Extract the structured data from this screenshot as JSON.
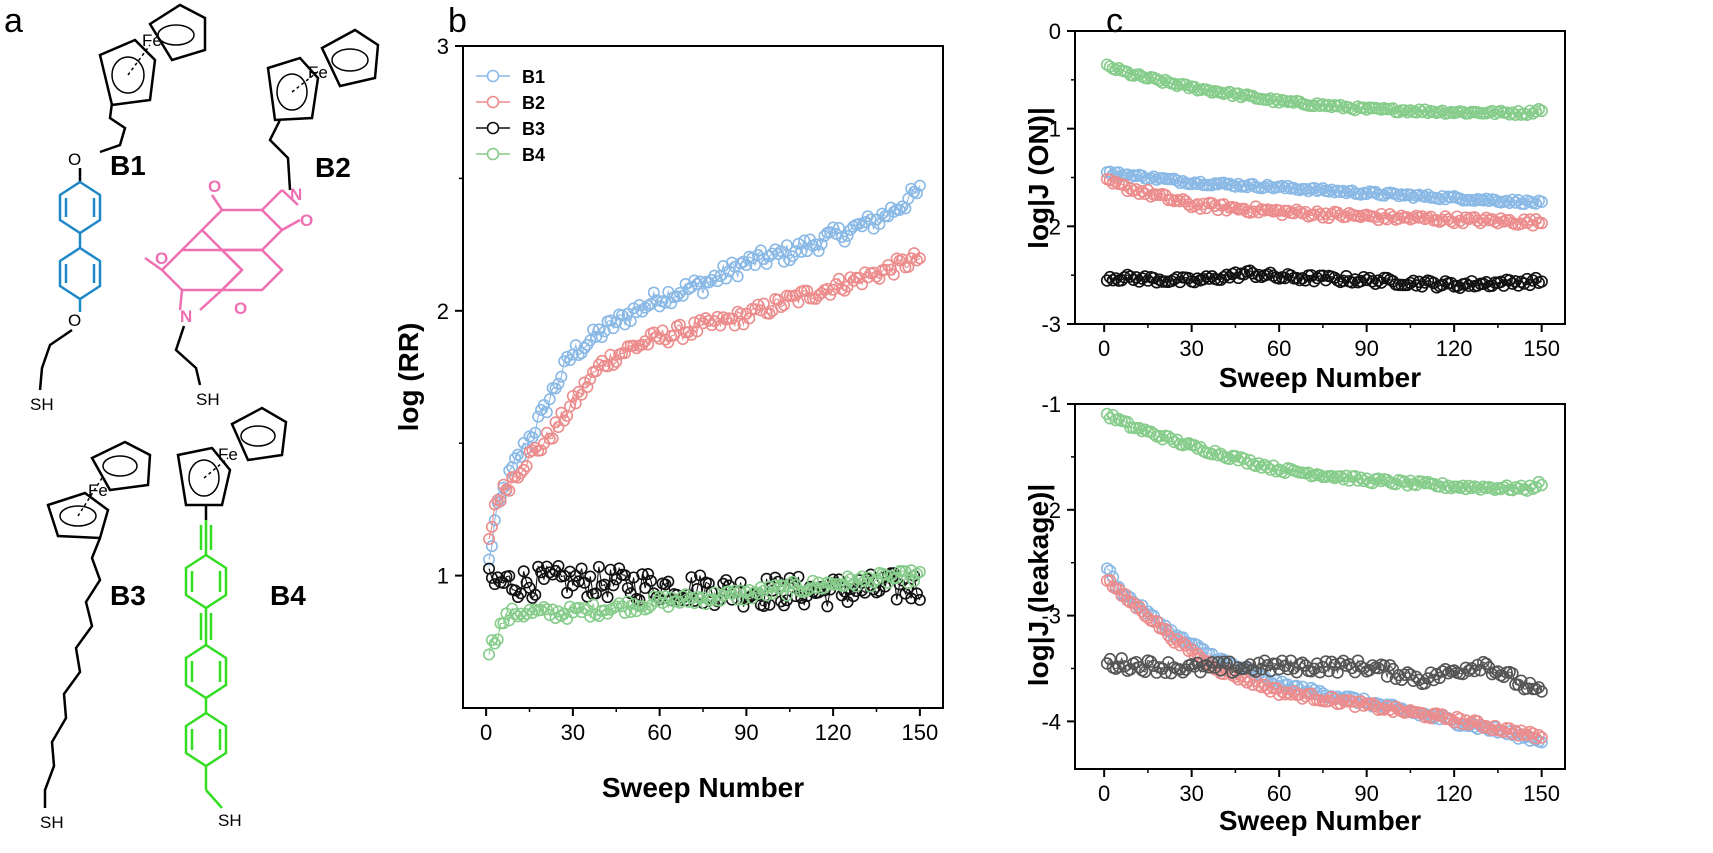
{
  "figure": {
    "panel_labels": {
      "a": "a",
      "b": "b",
      "c": "c"
    },
    "molecules": {
      "b1": {
        "label": "B1",
        "color": "#1e88c7",
        "atoms": {
          "fe": "Fe",
          "o_top": "O",
          "o_bottom": "O",
          "sh": "SH"
        }
      },
      "b2": {
        "label": "B2",
        "color": "#ef6fb3",
        "atoms": {
          "fe": "Fe",
          "n_top": "N",
          "n_bottom": "N",
          "o1": "O",
          "o2": "O",
          "o3": "O",
          "o4": "O",
          "sh": "SH"
        }
      },
      "b3": {
        "label": "B3",
        "color": "#000000",
        "atoms": {
          "fe": "Fe",
          "sh": "SH"
        }
      },
      "b4": {
        "label": "B4",
        "color": "#33dd22",
        "atoms": {
          "fe": "Fe",
          "sh": "SH"
        }
      }
    }
  },
  "colors": {
    "B1": "#8ab9e6",
    "B2": "#ec8c8c",
    "B3": "#111111",
    "B4": "#86cc8a",
    "B3_leak": "#555555"
  },
  "chart_data": [
    {
      "id": "b",
      "type": "scatter",
      "title": "",
      "xlabel": "Sweep Number",
      "ylabel": "log (RR)",
      "xlim": [
        -8,
        158
      ],
      "ylim": [
        0.5,
        3.0
      ],
      "xticks": [
        0,
        30,
        60,
        90,
        120,
        150
      ],
      "yticks": [
        1,
        2,
        3
      ],
      "legend": {
        "placement": "top-left",
        "entries": [
          "B1",
          "B2",
          "B3",
          "B4"
        ]
      },
      "grid": false,
      "series": [
        {
          "name": "B1",
          "anchors": [
            [
              1,
              1.05
            ],
            [
              3,
              1.2
            ],
            [
              6,
              1.32
            ],
            [
              10,
              1.42
            ],
            [
              15,
              1.52
            ],
            [
              20,
              1.62
            ],
            [
              25,
              1.74
            ],
            [
              30,
              1.84
            ],
            [
              40,
              1.92
            ],
            [
              50,
              1.99
            ],
            [
              60,
              2.05
            ],
            [
              75,
              2.1
            ],
            [
              90,
              2.18
            ],
            [
              105,
              2.22
            ],
            [
              120,
              2.28
            ],
            [
              135,
              2.34
            ],
            [
              150,
              2.45
            ]
          ]
        },
        {
          "name": "B2",
          "anchors": [
            [
              1,
              1.12
            ],
            [
              3,
              1.27
            ],
            [
              6,
              1.32
            ],
            [
              10,
              1.38
            ],
            [
              15,
              1.45
            ],
            [
              20,
              1.5
            ],
            [
              25,
              1.57
            ],
            [
              30,
              1.65
            ],
            [
              40,
              1.8
            ],
            [
              50,
              1.86
            ],
            [
              60,
              1.9
            ],
            [
              75,
              1.94
            ],
            [
              90,
              1.98
            ],
            [
              105,
              2.04
            ],
            [
              120,
              2.09
            ],
            [
              135,
              2.14
            ],
            [
              150,
              2.2
            ]
          ]
        },
        {
          "name": "B3",
          "anchors": [
            [
              1,
              0.97
            ],
            [
              30,
              0.98
            ],
            [
              60,
              0.96
            ],
            [
              90,
              0.94
            ],
            [
              120,
              0.94
            ],
            [
              150,
              0.96
            ]
          ]
        },
        {
          "name": "B4",
          "anchors": [
            [
              1,
              0.72
            ],
            [
              3,
              0.76
            ],
            [
              6,
              0.83
            ],
            [
              10,
              0.86
            ],
            [
              30,
              0.86
            ],
            [
              60,
              0.9
            ],
            [
              90,
              0.93
            ],
            [
              120,
              0.97
            ],
            [
              150,
              1.0
            ]
          ]
        }
      ]
    },
    {
      "id": "c-top",
      "type": "scatter",
      "title": "",
      "xlabel": "Sweep Number",
      "ylabel": "log|J (ON)|",
      "xlim": [
        -10,
        158
      ],
      "ylim": [
        -3,
        0
      ],
      "xticks": [
        0,
        30,
        60,
        90,
        120,
        150
      ],
      "yticks": [
        0,
        -1,
        -2,
        -3
      ],
      "grid": false,
      "series": [
        {
          "name": "B4",
          "anchors": [
            [
              1,
              -0.36
            ],
            [
              10,
              -0.45
            ],
            [
              30,
              -0.58
            ],
            [
              60,
              -0.72
            ],
            [
              90,
              -0.8
            ],
            [
              120,
              -0.83
            ],
            [
              145,
              -0.84
            ],
            [
              150,
              -0.8
            ]
          ]
        },
        {
          "name": "B1",
          "anchors": [
            [
              1,
              -1.45
            ],
            [
              30,
              -1.55
            ],
            [
              60,
              -1.6
            ],
            [
              90,
              -1.66
            ],
            [
              120,
              -1.71
            ],
            [
              150,
              -1.76
            ]
          ]
        },
        {
          "name": "B2",
          "anchors": [
            [
              1,
              -1.55
            ],
            [
              30,
              -1.78
            ],
            [
              60,
              -1.85
            ],
            [
              90,
              -1.9
            ],
            [
              120,
              -1.93
            ],
            [
              150,
              -1.96
            ]
          ]
        },
        {
          "name": "B3",
          "anchors": [
            [
              1,
              -2.52
            ],
            [
              30,
              -2.56
            ],
            [
              50,
              -2.48
            ],
            [
              60,
              -2.52
            ],
            [
              90,
              -2.55
            ],
            [
              120,
              -2.6
            ],
            [
              150,
              -2.56
            ]
          ]
        }
      ]
    },
    {
      "id": "c-bottom",
      "type": "scatter",
      "title": "",
      "xlabel": "Sweep Number",
      "ylabel": "log|J (leakage)|",
      "xlim": [
        -10,
        158
      ],
      "ylim": [
        -4.45,
        -1.0
      ],
      "xticks": [
        0,
        30,
        60,
        90,
        120,
        150
      ],
      "yticks": [
        -1,
        -2,
        -3,
        -4
      ],
      "grid": false,
      "series": [
        {
          "name": "B4",
          "anchors": [
            [
              1,
              -1.1
            ],
            [
              10,
              -1.22
            ],
            [
              30,
              -1.4
            ],
            [
              60,
              -1.62
            ],
            [
              90,
              -1.72
            ],
            [
              120,
              -1.78
            ],
            [
              145,
              -1.8
            ],
            [
              150,
              -1.75
            ]
          ]
        },
        {
          "name": "B1",
          "anchors": [
            [
              1,
              -2.55
            ],
            [
              5,
              -2.75
            ],
            [
              15,
              -2.98
            ],
            [
              25,
              -3.2
            ],
            [
              40,
              -3.42
            ],
            [
              60,
              -3.65
            ],
            [
              90,
              -3.82
            ],
            [
              120,
              -4.0
            ],
            [
              150,
              -4.18
            ]
          ]
        },
        {
          "name": "B2",
          "anchors": [
            [
              1,
              -2.65
            ],
            [
              5,
              -2.78
            ],
            [
              15,
              -3.0
            ],
            [
              25,
              -3.25
            ],
            [
              40,
              -3.52
            ],
            [
              60,
              -3.72
            ],
            [
              90,
              -3.85
            ],
            [
              120,
              -3.98
            ],
            [
              150,
              -4.15
            ]
          ]
        },
        {
          "name": "B3",
          "anchors": [
            [
              1,
              -3.45
            ],
            [
              30,
              -3.5
            ],
            [
              60,
              -3.48
            ],
            [
              90,
              -3.48
            ],
            [
              110,
              -3.6
            ],
            [
              130,
              -3.45
            ],
            [
              150,
              -3.75
            ]
          ]
        }
      ]
    }
  ]
}
